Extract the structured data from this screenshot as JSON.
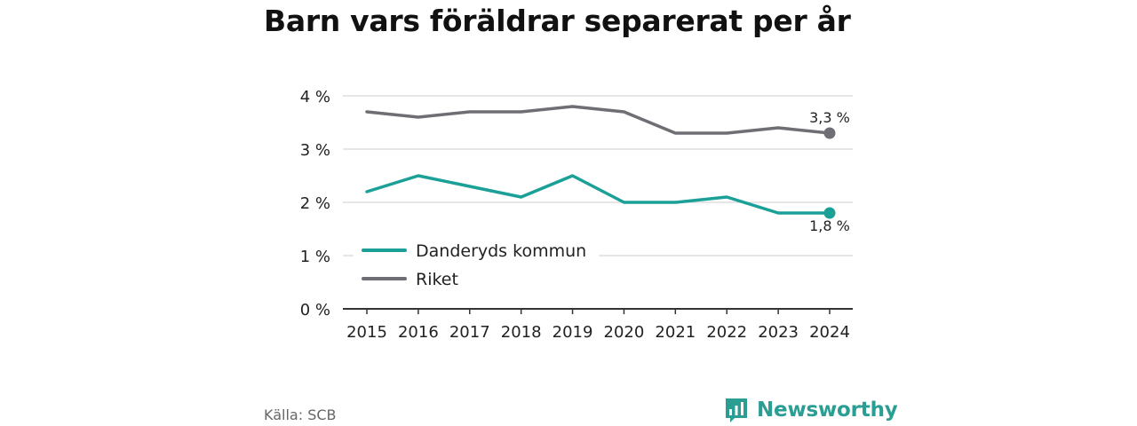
{
  "colors": {
    "danderyd": "#1ba098",
    "riket": "#6e6e74",
    "grid": "#d6d6d6",
    "axis": "#333333",
    "brand": "#2b9e93"
  },
  "chart_data": {
    "type": "line",
    "title": "Barn vars föräldrar separerat per år",
    "x": [
      "2015",
      "2016",
      "2017",
      "2018",
      "2019",
      "2020",
      "2021",
      "2022",
      "2023",
      "2024"
    ],
    "ylim": [
      0,
      4
    ],
    "yticks": [
      {
        "value": 0,
        "label": "0 %"
      },
      {
        "value": 1,
        "label": "1 %"
      },
      {
        "value": 2,
        "label": "2 %"
      },
      {
        "value": 3,
        "label": "3 %"
      },
      {
        "value": 4,
        "label": "4 %"
      }
    ],
    "grid": true,
    "legend_position": "bottom-left",
    "series": [
      {
        "name": "Danderyds kommun",
        "values": [
          2.2,
          2.5,
          2.3,
          2.1,
          2.5,
          2.0,
          2.0,
          2.1,
          1.8,
          1.8
        ],
        "end_label": "1,8 %"
      },
      {
        "name": "Riket",
        "values": [
          3.7,
          3.6,
          3.7,
          3.7,
          3.8,
          3.7,
          3.3,
          3.3,
          3.4,
          3.3
        ],
        "end_label": "3,3 %"
      }
    ]
  },
  "footer": {
    "source": "Källa: SCB",
    "brand": "Newsworthy"
  }
}
